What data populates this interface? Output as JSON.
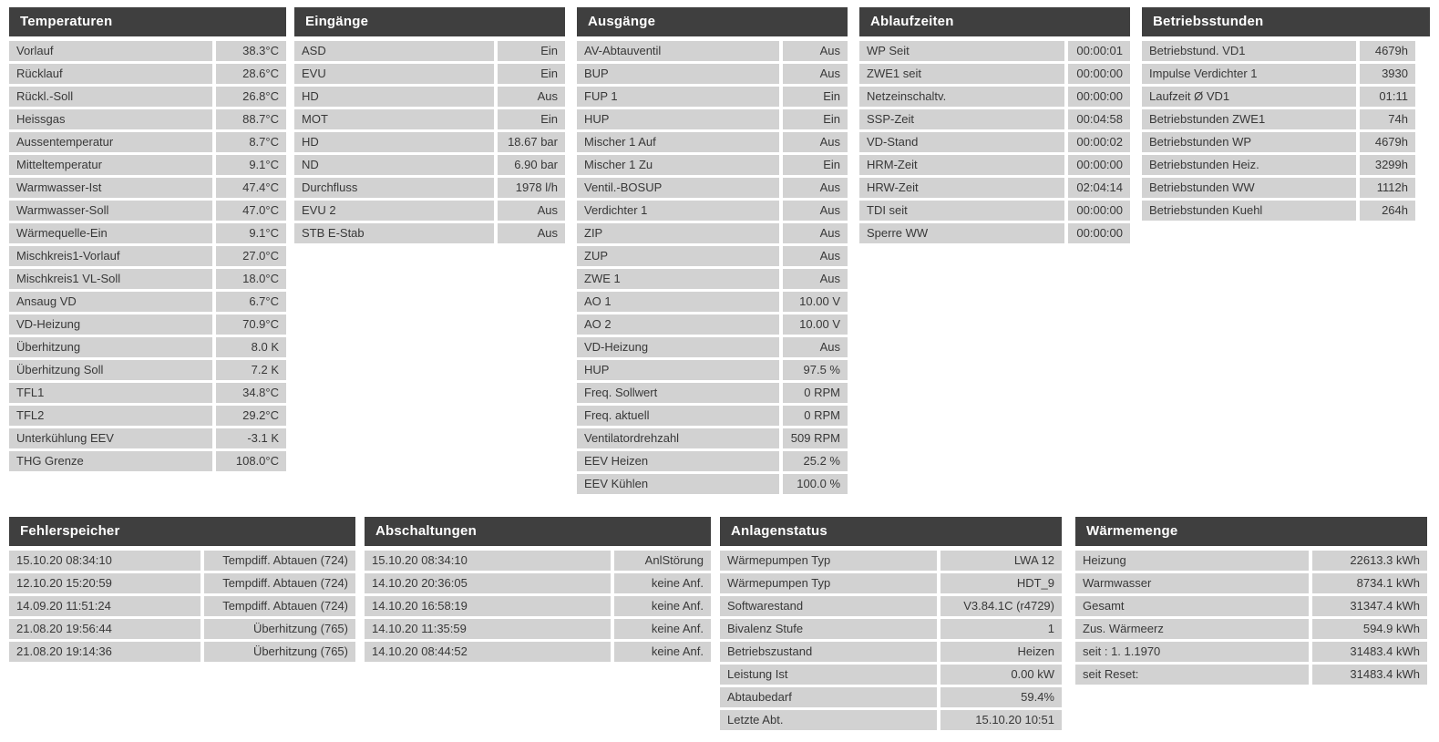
{
  "colors": {
    "header_bg": "#3f3f3f",
    "header_text": "#ffffff",
    "row_bg": "#d2d2d2",
    "row_text": "#383838",
    "page_bg": "#ffffff"
  },
  "panels": [
    {
      "id": "temperaturen",
      "title": "Temperaturen",
      "rows": [
        {
          "label": "Vorlauf",
          "value": "38.3°C"
        },
        {
          "label": "Rücklauf",
          "value": "28.6°C"
        },
        {
          "label": "Rückl.-Soll",
          "value": "26.8°C"
        },
        {
          "label": "Heissgas",
          "value": "88.7°C"
        },
        {
          "label": "Aussentemperatur",
          "value": "8.7°C"
        },
        {
          "label": "Mitteltemperatur",
          "value": "9.1°C"
        },
        {
          "label": "Warmwasser-Ist",
          "value": "47.4°C"
        },
        {
          "label": "Warmwasser-Soll",
          "value": "47.0°C"
        },
        {
          "label": "Wärmequelle-Ein",
          "value": "9.1°C"
        },
        {
          "label": "Mischkreis1-Vorlauf",
          "value": "27.0°C"
        },
        {
          "label": "Mischkreis1 VL-Soll",
          "value": "18.0°C"
        },
        {
          "label": "Ansaug VD",
          "value": "6.7°C"
        },
        {
          "label": "VD-Heizung",
          "value": "70.9°C"
        },
        {
          "label": "Überhitzung",
          "value": "8.0 K"
        },
        {
          "label": "Überhitzung Soll",
          "value": "7.2 K"
        },
        {
          "label": "TFL1",
          "value": "34.8°C"
        },
        {
          "label": "TFL2",
          "value": "29.2°C"
        },
        {
          "label": "Unterkühlung EEV",
          "value": "-3.1 K"
        },
        {
          "label": "THG Grenze",
          "value": "108.0°C"
        }
      ]
    },
    {
      "id": "eingaenge",
      "title": "Eingänge",
      "rows": [
        {
          "label": "ASD",
          "value": "Ein"
        },
        {
          "label": "EVU",
          "value": "Ein"
        },
        {
          "label": "HD",
          "value": "Aus"
        },
        {
          "label": "MOT",
          "value": "Ein"
        },
        {
          "label": "HD",
          "value": "18.67 bar"
        },
        {
          "label": "ND",
          "value": "6.90 bar"
        },
        {
          "label": "Durchfluss",
          "value": "1978 l/h"
        },
        {
          "label": "EVU 2",
          "value": "Aus"
        },
        {
          "label": "STB E-Stab",
          "value": "Aus"
        }
      ]
    },
    {
      "id": "ausgaenge",
      "title": "Ausgänge",
      "rows": [
        {
          "label": "AV-Abtauventil",
          "value": "Aus"
        },
        {
          "label": "BUP",
          "value": "Aus"
        },
        {
          "label": "FUP 1",
          "value": "Ein"
        },
        {
          "label": "HUP",
          "value": "Ein"
        },
        {
          "label": "Mischer 1 Auf",
          "value": "Aus"
        },
        {
          "label": "Mischer 1 Zu",
          "value": "Ein"
        },
        {
          "label": "Ventil.-BOSUP",
          "value": "Aus"
        },
        {
          "label": "Verdichter 1",
          "value": "Aus"
        },
        {
          "label": "ZIP",
          "value": "Aus"
        },
        {
          "label": "ZUP",
          "value": "Aus"
        },
        {
          "label": "ZWE 1",
          "value": "Aus"
        },
        {
          "label": "AO 1",
          "value": "10.00 V"
        },
        {
          "label": "AO 2",
          "value": "10.00 V"
        },
        {
          "label": "VD-Heizung",
          "value": "Aus"
        },
        {
          "label": "HUP",
          "value": "97.5 %"
        },
        {
          "label": "Freq. Sollwert",
          "value": "0 RPM"
        },
        {
          "label": "Freq. aktuell",
          "value": "0 RPM"
        },
        {
          "label": "Ventilatordrehzahl",
          "value": "509 RPM"
        },
        {
          "label": "EEV Heizen",
          "value": "25.2 %"
        },
        {
          "label": "EEV Kühlen",
          "value": "100.0 %"
        }
      ]
    },
    {
      "id": "ablaufzeiten",
      "title": "Ablaufzeiten",
      "rows": [
        {
          "label": "WP Seit",
          "value": "00:00:01"
        },
        {
          "label": "ZWE1 seit",
          "value": "00:00:00"
        },
        {
          "label": "Netzeinschaltv.",
          "value": "00:00:00"
        },
        {
          "label": "SSP-Zeit",
          "value": "00:04:58"
        },
        {
          "label": "VD-Stand",
          "value": "00:00:02"
        },
        {
          "label": "HRM-Zeit",
          "value": "00:00:00"
        },
        {
          "label": "HRW-Zeit",
          "value": "02:04:14"
        },
        {
          "label": "TDI seit",
          "value": "00:00:00"
        },
        {
          "label": "Sperre WW",
          "value": "00:00:00"
        }
      ]
    },
    {
      "id": "betriebsstunden",
      "title": "Betriebsstunden",
      "rows": [
        {
          "label": "Betriebstund. VD1",
          "value": "4679h"
        },
        {
          "label": "Impulse Verdichter 1",
          "value": "3930"
        },
        {
          "label": "Laufzeit Ø VD1",
          "value": "01:11"
        },
        {
          "label": "Betriebstunden ZWE1",
          "value": "74h"
        },
        {
          "label": "Betriebstunden WP",
          "value": "4679h"
        },
        {
          "label": "Betriebstunden Heiz.",
          "value": "3299h"
        },
        {
          "label": "Betriebstunden WW",
          "value": "1112h"
        },
        {
          "label": "Betriebstunden Kuehl",
          "value": "264h"
        }
      ]
    },
    {
      "id": "fehlerspeicher",
      "title": "Fehlerspeicher",
      "rows": [
        {
          "label": "15.10.20 08:34:10",
          "value": "Tempdiff. Abtauen (724)"
        },
        {
          "label": "12.10.20 15:20:59",
          "value": "Tempdiff. Abtauen (724)"
        },
        {
          "label": "14.09.20 11:51:24",
          "value": "Tempdiff. Abtauen (724)"
        },
        {
          "label": "21.08.20 19:56:44",
          "value": "Überhitzung (765)"
        },
        {
          "label": "21.08.20 19:14:36",
          "value": "Überhitzung (765)"
        }
      ]
    },
    {
      "id": "abschaltungen",
      "title": "Abschaltungen",
      "rows": [
        {
          "label": "15.10.20 08:34:10",
          "value": "AnlStörung"
        },
        {
          "label": "14.10.20 20:36:05",
          "value": "keine Anf."
        },
        {
          "label": "14.10.20 16:58:19",
          "value": "keine Anf."
        },
        {
          "label": "14.10.20 11:35:59",
          "value": "keine Anf."
        },
        {
          "label": "14.10.20 08:44:52",
          "value": "keine Anf."
        }
      ]
    },
    {
      "id": "anlagenstatus",
      "title": "Anlagenstatus",
      "rows": [
        {
          "label": "Wärmepumpen Typ",
          "value": "LWA 12"
        },
        {
          "label": "Wärmepumpen Typ",
          "value": "HDT_9"
        },
        {
          "label": "Softwarestand",
          "value": "V3.84.1C (r4729)"
        },
        {
          "label": "Bivalenz Stufe",
          "value": "1"
        },
        {
          "label": "Betriebszustand",
          "value": "Heizen"
        },
        {
          "label": "Leistung Ist",
          "value": "0.00 kW"
        },
        {
          "label": "Abtaubedarf",
          "value": "59.4%"
        },
        {
          "label": "Letzte Abt.",
          "value": "15.10.20 10:51"
        }
      ]
    },
    {
      "id": "waermemenge",
      "title": "Wärmemenge",
      "rows": [
        {
          "label": "Heizung",
          "value": "22613.3 kWh"
        },
        {
          "label": "Warmwasser",
          "value": "8734.1 kWh"
        },
        {
          "label": "Gesamt",
          "value": "31347.4 kWh"
        },
        {
          "label": "Zus. Wärmeerz",
          "value": "594.9 kWh"
        },
        {
          "label": "seit : 1. 1.1970",
          "value": "31483.4 kWh"
        },
        {
          "label": "seit Reset:",
          "value": "31483.4 kWh"
        }
      ]
    }
  ]
}
